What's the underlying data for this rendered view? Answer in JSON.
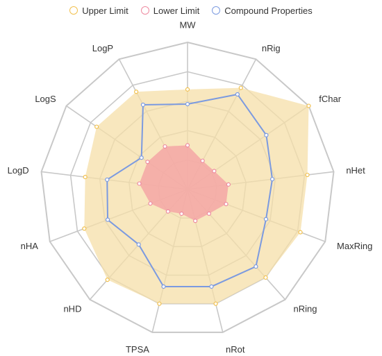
{
  "chart_data": {
    "type": "radar",
    "axes": [
      "MW",
      "nRig",
      "fChar",
      "nHet",
      "MaxRing",
      "nRing",
      "nRot",
      "TPSA",
      "nHD",
      "nHA",
      "LogD",
      "LogS",
      "LogP"
    ],
    "series": [
      {
        "name": "Upper Limit",
        "color": "#f2c14e",
        "fill": "#f5dfa8",
        "values": [
          0.68,
          0.78,
          1.0,
          0.82,
          0.82,
          0.8,
          0.8,
          0.8,
          0.82,
          0.75,
          0.7,
          0.75,
          0.75
        ]
      },
      {
        "name": "Lower Limit",
        "color": "#ee8aa0",
        "fill": "#f4a6a6",
        "values": [
          0.3,
          0.22,
          0.22,
          0.28,
          0.28,
          0.22,
          0.22,
          0.17,
          0.2,
          0.27,
          0.33,
          0.33,
          0.33
        ]
      },
      {
        "name": "Compound Properties",
        "color": "#7b9ae0",
        "fill": "none",
        "values": [
          0.58,
          0.73,
          0.65,
          0.58,
          0.57,
          0.7,
          0.68,
          0.68,
          0.5,
          0.58,
          0.55,
          0.38,
          0.65
        ]
      }
    ],
    "rmax": 1.0,
    "rings": 5,
    "legend_position": "top"
  }
}
